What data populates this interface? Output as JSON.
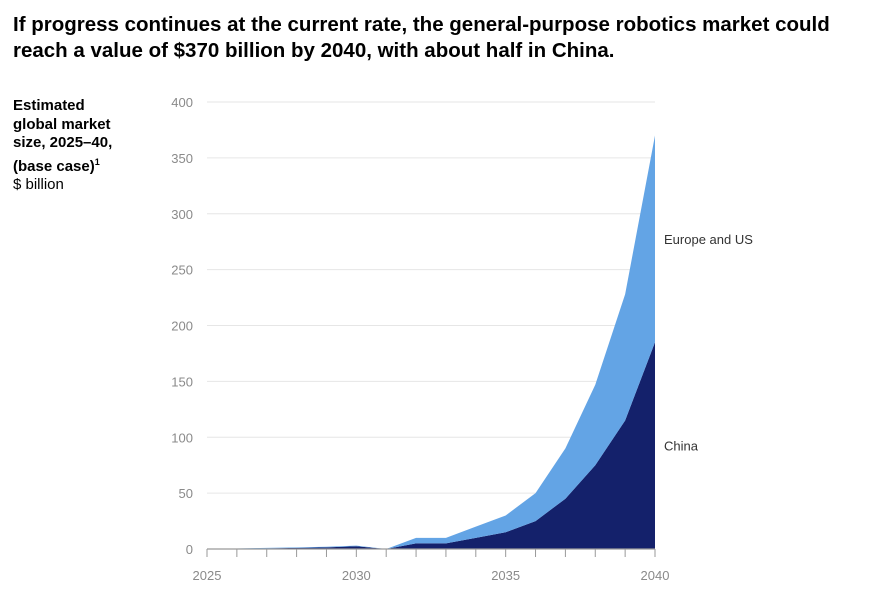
{
  "chart_data": {
    "type": "area",
    "stacked": true,
    "title": "If progress continues at the current rate, the general-purpose robotics market could reach a value of  $370 billion by 2040, with about half in China.",
    "ylabel_lines": [
      "Estimated",
      "global market",
      "size, 2025–40,",
      "(base case)"
    ],
    "ylabel_footnote": "1",
    "yunit": "$ billion",
    "x": [
      2025,
      2026,
      2027,
      2028,
      2029,
      2030,
      2031,
      2032,
      2033,
      2034,
      2035,
      2036,
      2037,
      2038,
      2039,
      2040
    ],
    "xticks": [
      "2025",
      "2030",
      "2035",
      "2040"
    ],
    "yticks": [
      "0",
      "50",
      "100",
      "150",
      "200",
      "250",
      "300",
      "350",
      "400"
    ],
    "ylim": [
      0,
      400
    ],
    "xlim": [
      2025,
      2040
    ],
    "grid": true,
    "series": [
      {
        "name": "China",
        "color": "#14216b",
        "values": [
          0,
          0.3,
          0.6,
          1,
          1.5,
          2.5,
          0,
          5,
          5,
          10,
          15,
          25,
          45,
          75,
          115,
          185
        ]
      },
      {
        "name": "Europe and US",
        "color": "#63a4e5",
        "values": [
          0,
          0.2,
          0.4,
          0.5,
          0.5,
          0.5,
          0,
          5,
          5,
          10,
          15,
          25,
          45,
          72,
          113,
          185
        ]
      }
    ]
  }
}
